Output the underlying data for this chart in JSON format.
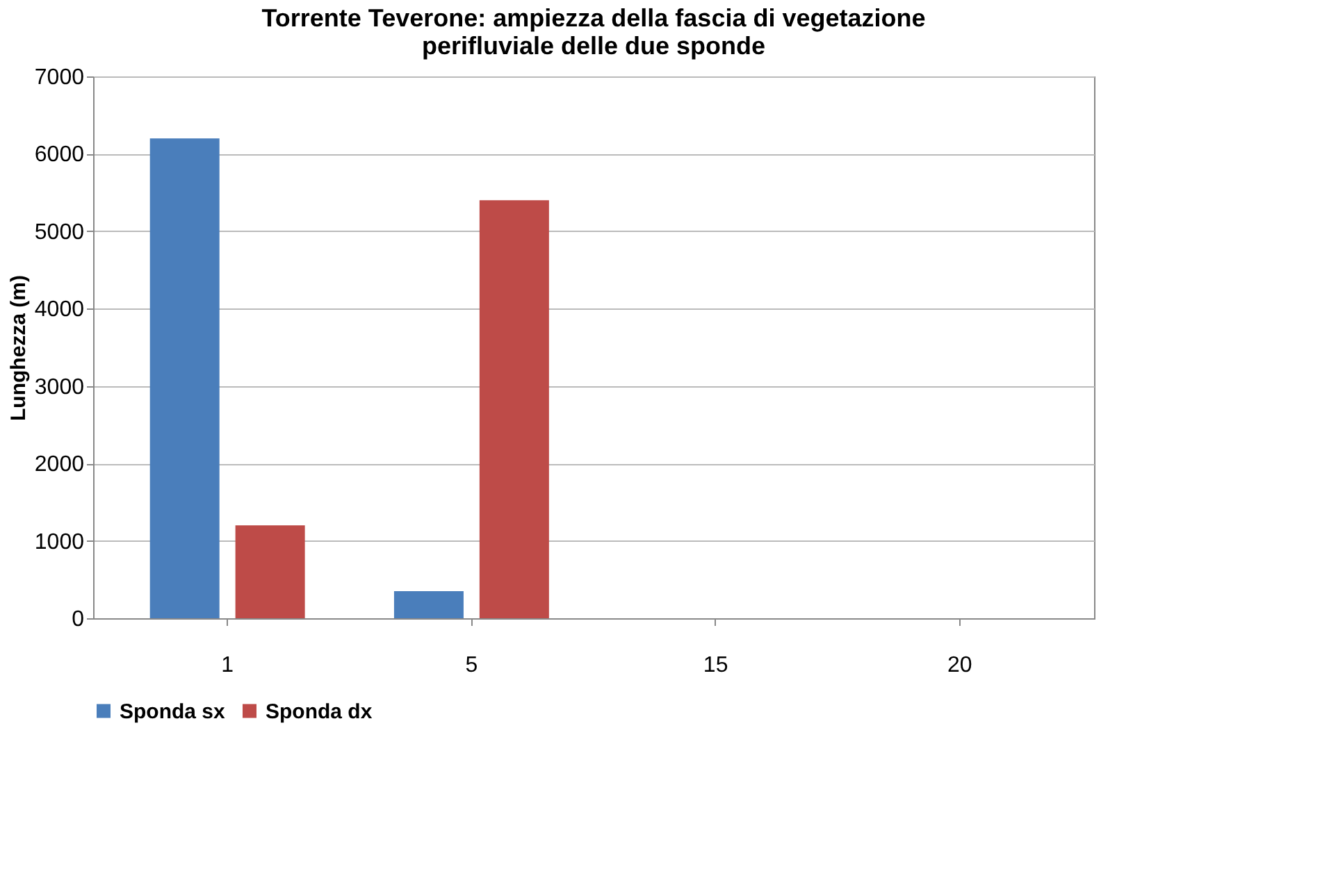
{
  "chart_data": {
    "type": "bar",
    "title": "Torrente Teverone: ampiezza della fascia di vegetazione perifluviale delle due sponde",
    "ylabel": "Lunghezza (m)",
    "categories": [
      "1",
      "5",
      "15",
      "20"
    ],
    "series": [
      {
        "name": "Sponda sx",
        "color": "#4a7ebb",
        "values": [
          6200,
          350,
          0,
          0
        ]
      },
      {
        "name": "Sponda dx",
        "color": "#be4b48",
        "values": [
          1200,
          5400,
          0,
          0
        ]
      }
    ],
    "ylim": [
      0,
      7000
    ],
    "yticks": [
      0,
      1000,
      2000,
      3000,
      4000,
      5000,
      6000,
      7000
    ],
    "grid": "y",
    "legend": "bottom"
  }
}
